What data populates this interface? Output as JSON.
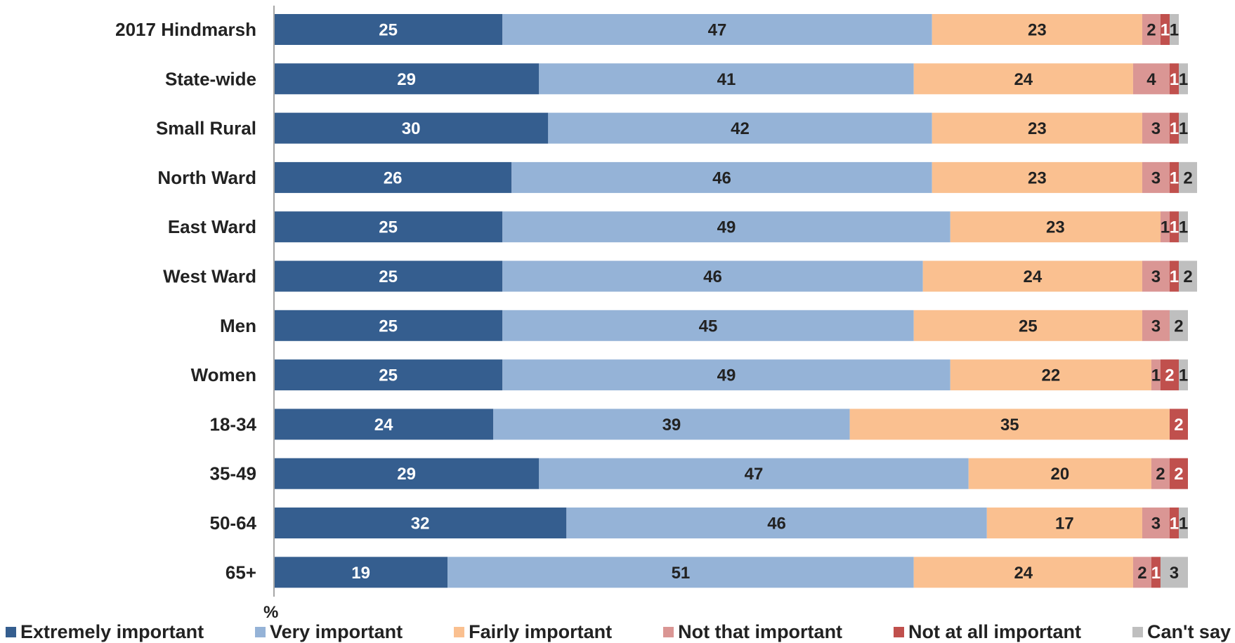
{
  "chart_data": {
    "type": "bar",
    "orientation": "horizontal",
    "stacked": true,
    "xlabel": "%",
    "xlim": [
      0,
      100
    ],
    "grid": false,
    "legend_position": "bottom",
    "categories": [
      "2017 Hindmarsh",
      "State-wide",
      "Small Rural",
      "North Ward",
      "East Ward",
      "West Ward",
      "Men",
      "Women",
      "18-34",
      "35-49",
      "50-64",
      "65+"
    ],
    "series": [
      {
        "name": "Extremely important",
        "color": "#355e8f",
        "label_color": "#ffffff",
        "values": [
          25,
          29,
          30,
          26,
          25,
          25,
          25,
          25,
          24,
          29,
          32,
          19
        ]
      },
      {
        "name": "Very important",
        "color": "#95b3d7",
        "label_color": "#222222",
        "values": [
          47,
          41,
          42,
          46,
          49,
          46,
          45,
          49,
          39,
          47,
          46,
          51
        ]
      },
      {
        "name": "Fairly important",
        "color": "#fac090",
        "label_color": "#222222",
        "values": [
          23,
          24,
          23,
          23,
          23,
          24,
          25,
          22,
          35,
          20,
          17,
          24
        ]
      },
      {
        "name": "Not that important",
        "color": "#da9694",
        "label_color": "#222222",
        "values": [
          2,
          4,
          3,
          3,
          1,
          3,
          3,
          1,
          null,
          2,
          3,
          2
        ]
      },
      {
        "name": "Not at all important",
        "color": "#c0504d",
        "label_color": "#ffffff",
        "values": [
          1,
          1,
          1,
          1,
          1,
          1,
          null,
          2,
          2,
          2,
          1,
          1
        ]
      },
      {
        "name": "Can't say",
        "color": "#bfbfbf",
        "label_color": "#222222",
        "values": [
          1,
          1,
          1,
          2,
          1,
          2,
          2,
          1,
          null,
          null,
          1,
          3
        ]
      }
    ]
  }
}
